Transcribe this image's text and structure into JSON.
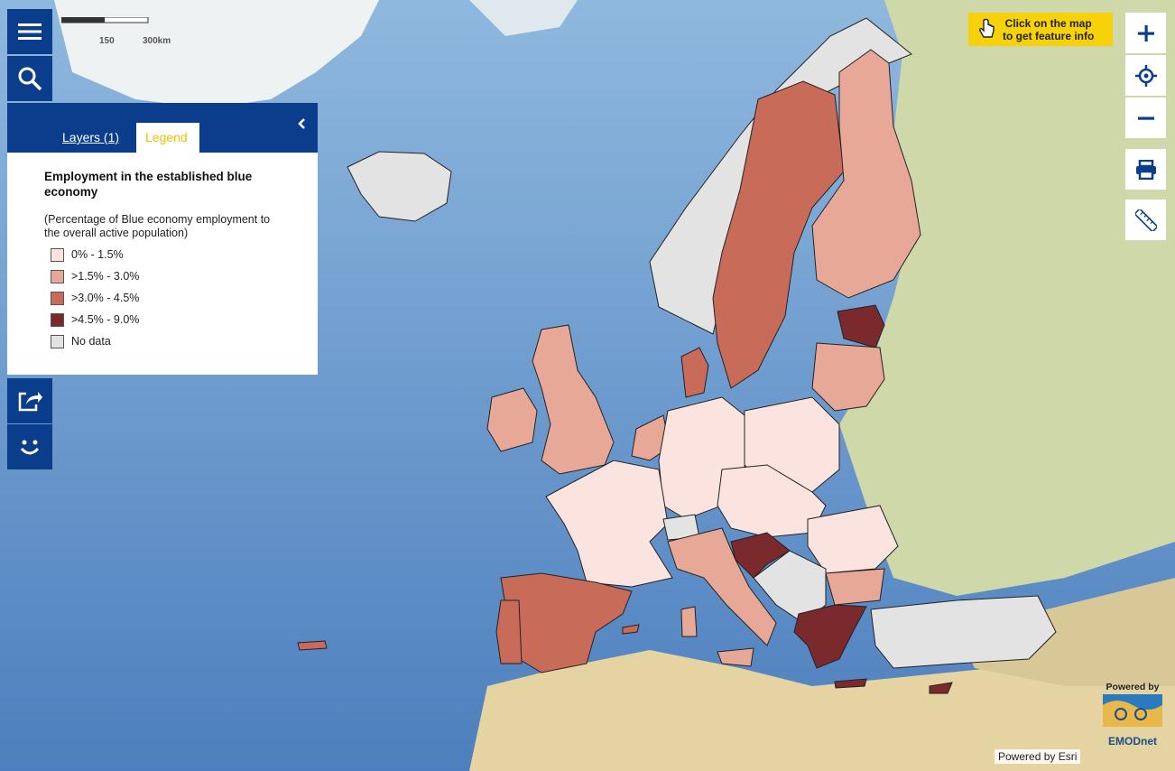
{
  "scale": {
    "labels": [
      "150",
      "300km"
    ]
  },
  "info_button": {
    "line1": "Click on the map",
    "line2": "to get feature info"
  },
  "panel": {
    "tabs": [
      {
        "label": "Layers (1)"
      },
      {
        "label": "Legend"
      }
    ],
    "legend": {
      "title": "Employment in the established blue economy",
      "subtitle": "(Percentage of Blue economy employment to the overall active population)",
      "classes": [
        {
          "label": "0% - 1.5%",
          "color": "#fbe3e0"
        },
        {
          "label": ">1.5% - 3.0%",
          "color": "#e8a898"
        },
        {
          "label": ">3.0% - 4.5%",
          "color": "#c86b58"
        },
        {
          "label": ">4.5% - 9.0%",
          "color": "#7a2a2c"
        },
        {
          "label": "No data",
          "color": "#e3e3e3"
        }
      ]
    }
  },
  "left_toolbar": [
    "menu-icon",
    "search-icon",
    "share-icon",
    "smile-icon"
  ],
  "right_toolbar": [
    "zoom-in-icon",
    "locate-icon",
    "zoom-out-icon",
    "print-icon",
    "ruler-icon"
  ],
  "attribution": {
    "esri": "Powered by Esri",
    "emodnet_powered": "Powered by",
    "emodnet_name": "EMODnet"
  }
}
